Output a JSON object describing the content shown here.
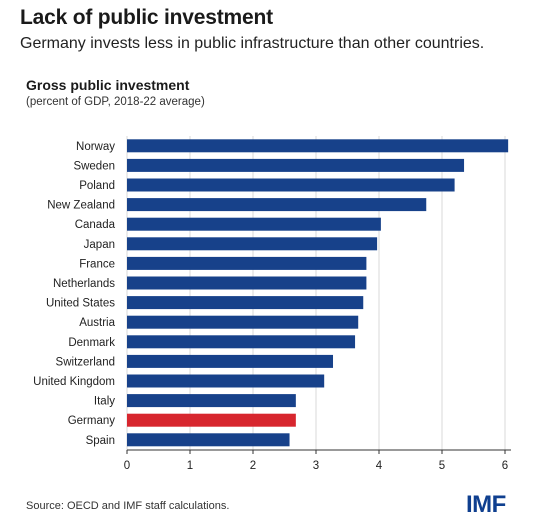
{
  "header": {
    "title": "Lack of public investment",
    "subtitle": "Germany invests less in public infrastructure than other countries."
  },
  "chart_header": {
    "title": "Gross public investment",
    "subtitle": "(percent of GDP, 2018-22 average)"
  },
  "footer": {
    "source": "Source: OECD and IMF staff calculations.",
    "logo": "IMF"
  },
  "colors": {
    "bar": "#17418a",
    "highlight": "#d7262e",
    "grid": "#cfcfcf"
  },
  "chart_data": {
    "type": "bar",
    "orientation": "horizontal",
    "title": "Gross public investment",
    "subtitle": "(percent of GDP, 2018-22 average)",
    "categories": [
      "Norway",
      "Sweden",
      "Poland",
      "New Zealand",
      "Canada",
      "Japan",
      "France",
      "Netherlands",
      "United States",
      "Austria",
      "Denmark",
      "Switzerland",
      "United Kingdom",
      "Italy",
      "Germany",
      "Spain"
    ],
    "values": [
      6.05,
      5.35,
      5.2,
      4.75,
      4.03,
      3.97,
      3.8,
      3.8,
      3.75,
      3.67,
      3.62,
      3.27,
      3.13,
      2.68,
      2.68,
      2.58
    ],
    "highlight": "Germany",
    "xlim": [
      0,
      6
    ],
    "xticks": [
      0,
      1,
      2,
      3,
      4,
      5,
      6
    ],
    "grid": true
  }
}
